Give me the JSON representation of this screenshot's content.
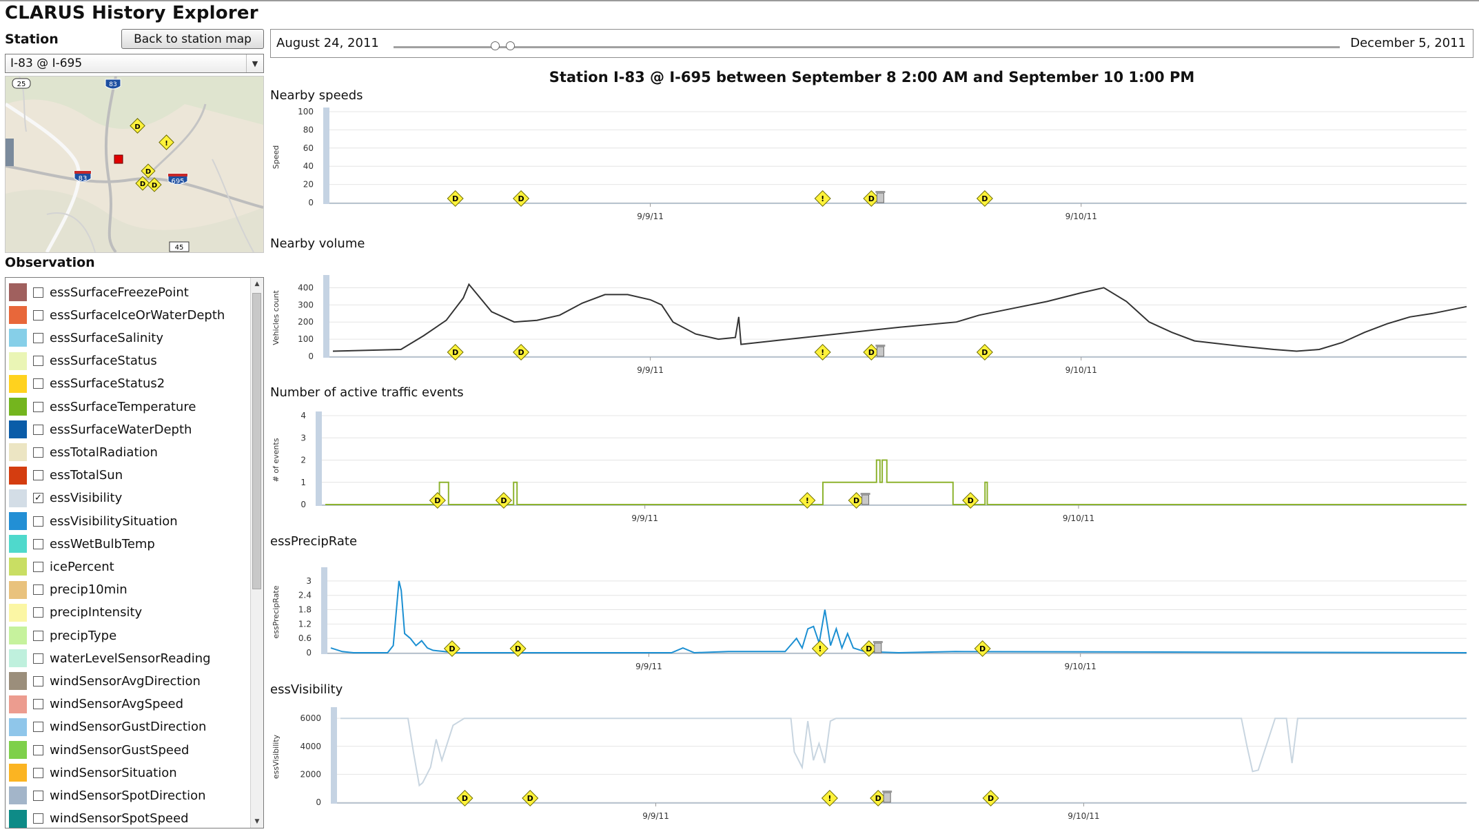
{
  "app": {
    "title": "CLARUS History Explorer"
  },
  "station": {
    "label": "Station",
    "back_button": "Back to station map",
    "selected": "I-83 @ I-695"
  },
  "map": {
    "shields": [
      "25",
      "83",
      "83",
      "695",
      "45"
    ],
    "markers": [
      "D",
      "!",
      "D",
      "D",
      "D"
    ]
  },
  "observation": {
    "label": "Observation",
    "items": [
      {
        "name": "essSurfaceFreezePoint",
        "color": "#a0605e",
        "checked": false
      },
      {
        "name": "essSurfaceIceOrWaterDepth",
        "color": "#e8673a",
        "checked": false
      },
      {
        "name": "essSurfaceSalinity",
        "color": "#86cfe8",
        "checked": false
      },
      {
        "name": "essSurfaceStatus",
        "color": "#eaf5b5",
        "checked": false
      },
      {
        "name": "essSurfaceStatus2",
        "color": "#ffd21e",
        "checked": false
      },
      {
        "name": "essSurfaceTemperature",
        "color": "#74b51e",
        "checked": false
      },
      {
        "name": "essSurfaceWaterDepth",
        "color": "#0a5ca8",
        "checked": false
      },
      {
        "name": "essTotalRadiation",
        "color": "#ece5c3",
        "checked": false
      },
      {
        "name": "essTotalSun",
        "color": "#d43d10",
        "checked": false
      },
      {
        "name": "essVisibility",
        "color": "#d3dde6",
        "checked": true
      },
      {
        "name": "essVisibilitySituation",
        "color": "#228fd5",
        "checked": false
      },
      {
        "name": "essWetBulbTemp",
        "color": "#4fd9cc",
        "checked": false
      },
      {
        "name": "icePercent",
        "color": "#c9de63",
        "checked": false
      },
      {
        "name": "precip10min",
        "color": "#e9c27d",
        "checked": false
      },
      {
        "name": "precipIntensity",
        "color": "#fbf6a4",
        "checked": false
      },
      {
        "name": "precipType",
        "color": "#c6f29d",
        "checked": false
      },
      {
        "name": "waterLevelSensorReading",
        "color": "#bff0dd",
        "checked": false
      },
      {
        "name": "windSensorAvgDirection",
        "color": "#9b8e7b",
        "checked": false
      },
      {
        "name": "windSensorAvgSpeed",
        "color": "#ec9c8f",
        "checked": false
      },
      {
        "name": "windSensorGustDirection",
        "color": "#8fc6ea",
        "checked": false
      },
      {
        "name": "windSensorGustSpeed",
        "color": "#7ed04a",
        "checked": false
      },
      {
        "name": "windSensorSituation",
        "color": "#fbb422",
        "checked": false
      },
      {
        "name": "windSensorSpotDirection",
        "color": "#a3b5c9",
        "checked": false
      },
      {
        "name": "windSensorSpotSpeed",
        "color": "#0e8b87",
        "checked": false
      }
    ]
  },
  "time_range": {
    "start": "August 24, 2011",
    "end": "December 5, 2011",
    "selection_fraction": [
      0.107,
      0.123
    ]
  },
  "main_title": "Station I-83 @ I-695 between September 8 2:00 AM and September 10 1:00 PM",
  "event_markers": [
    {
      "symbol": "D",
      "x_fraction": 0.108
    },
    {
      "symbol": "D",
      "x_fraction": 0.166
    },
    {
      "symbol": "!",
      "x_fraction": 0.432
    },
    {
      "symbol": "D",
      "x_fraction": 0.475
    },
    {
      "symbol": "D",
      "x_fraction": 0.575
    }
  ],
  "chart_data": [
    {
      "type": "line",
      "title": "Nearby speeds",
      "ylabel": "Speed",
      "xlabel": "",
      "ylim": [
        0,
        100
      ],
      "yticks": [
        0,
        20,
        40,
        60,
        80,
        100
      ],
      "xtick_labels": [
        "9/9/11",
        "9/10/11"
      ],
      "series": []
    },
    {
      "type": "line",
      "title": "Nearby volume",
      "ylabel": "Vehicles count",
      "xlabel": "",
      "ylim": [
        0,
        450
      ],
      "yticks": [
        0,
        100,
        200,
        300,
        400
      ],
      "xtick_labels": [
        "9/9/11",
        "9/10/11"
      ],
      "series": [
        {
          "color": "#333333",
          "x": [
            0.0,
            0.03,
            0.06,
            0.08,
            0.1,
            0.115,
            0.12,
            0.14,
            0.16,
            0.18,
            0.2,
            0.22,
            0.24,
            0.26,
            0.28,
            0.29,
            0.3,
            0.32,
            0.34,
            0.355,
            0.358,
            0.36,
            0.43,
            0.5,
            0.55,
            0.57,
            0.6,
            0.63,
            0.66,
            0.68,
            0.7,
            0.72,
            0.74,
            0.76,
            0.8,
            0.83,
            0.85,
            0.87,
            0.89,
            0.91,
            0.93,
            0.95,
            0.97,
            1.0
          ],
          "y": [
            30,
            35,
            40,
            120,
            210,
            340,
            420,
            260,
            200,
            210,
            240,
            310,
            360,
            360,
            330,
            300,
            200,
            130,
            100,
            110,
            230,
            70,
            120,
            170,
            200,
            240,
            280,
            320,
            370,
            400,
            320,
            200,
            140,
            90,
            60,
            40,
            30,
            40,
            80,
            140,
            190,
            230,
            250,
            290
          ]
        }
      ]
    },
    {
      "type": "line",
      "title": "Number of active traffic events",
      "ylabel": "# of events",
      "xlabel": "",
      "ylim": [
        0,
        4
      ],
      "yticks": [
        0,
        1,
        2,
        3,
        4
      ],
      "xtick_labels": [
        "9/9/11",
        "9/10/11"
      ],
      "series": [
        {
          "color": "#8db32f",
          "x": [
            0.0,
            0.1,
            0.1,
            0.108,
            0.108,
            0.165,
            0.165,
            0.168,
            0.168,
            0.436,
            0.436,
            0.483,
            0.483,
            0.486,
            0.486,
            0.488,
            0.488,
            0.492,
            0.492,
            0.55,
            0.55,
            0.578,
            0.578,
            0.58,
            0.58,
            1.0
          ],
          "y": [
            0,
            0,
            1,
            1,
            0,
            0,
            1,
            1,
            0,
            0,
            1,
            1,
            2,
            2,
            1,
            1,
            2,
            2,
            1,
            1,
            0,
            0,
            1,
            1,
            0,
            0
          ]
        }
      ]
    },
    {
      "type": "line",
      "title": "essPrecipRate",
      "ylabel": "essPrecipRate",
      "xlabel": "",
      "ylim": [
        0,
        3.4
      ],
      "yticks": [
        0,
        0.6,
        1.2,
        1.8,
        2.4,
        3
      ],
      "xtick_labels": [
        "9/9/11",
        "9/10/11"
      ],
      "series": [
        {
          "color": "#1b8fd2",
          "x": [
            0.0,
            0.01,
            0.02,
            0.05,
            0.055,
            0.06,
            0.062,
            0.065,
            0.07,
            0.075,
            0.08,
            0.085,
            0.09,
            0.1,
            0.11,
            0.2,
            0.3,
            0.31,
            0.32,
            0.35,
            0.4,
            0.41,
            0.415,
            0.42,
            0.425,
            0.43,
            0.435,
            0.44,
            0.445,
            0.45,
            0.455,
            0.46,
            0.47,
            0.5,
            0.55,
            1.0
          ],
          "y": [
            0.2,
            0.05,
            0,
            0,
            0.3,
            3.0,
            2.6,
            0.8,
            0.6,
            0.3,
            0.5,
            0.2,
            0.1,
            0.05,
            0,
            0,
            0,
            0.2,
            0,
            0.05,
            0.05,
            0.6,
            0.2,
            1.0,
            1.1,
            0.4,
            1.8,
            0.3,
            1.0,
            0.2,
            0.8,
            0.2,
            0.05,
            0,
            0.05,
            0
          ]
        }
      ]
    },
    {
      "type": "line",
      "title": "essVisibility",
      "ylabel": "essVisibility",
      "xlabel": "",
      "ylim": [
        0,
        6500
      ],
      "yticks": [
        0,
        2000,
        4000,
        6000
      ],
      "xtick_labels": [
        "9/9/11",
        "9/10/11"
      ],
      "series": [
        {
          "color": "#c8d5e0",
          "x": [
            0.0,
            0.06,
            0.065,
            0.07,
            0.073,
            0.08,
            0.085,
            0.09,
            0.1,
            0.11,
            0.12,
            0.4,
            0.403,
            0.41,
            0.415,
            0.42,
            0.425,
            0.43,
            0.435,
            0.44,
            0.445,
            0.45,
            0.8,
            0.805,
            0.81,
            0.815,
            0.83,
            0.84,
            0.845,
            0.85,
            1.0
          ],
          "y": [
            6000,
            6000,
            3500,
            1200,
            1400,
            2500,
            4500,
            3000,
            5500,
            6000,
            6000,
            6000,
            3600,
            2500,
            5800,
            3000,
            4200,
            2800,
            5800,
            6000,
            6000,
            6000,
            6000,
            4000,
            2200,
            2300,
            6000,
            6000,
            2800,
            6000,
            6000
          ]
        }
      ]
    }
  ]
}
